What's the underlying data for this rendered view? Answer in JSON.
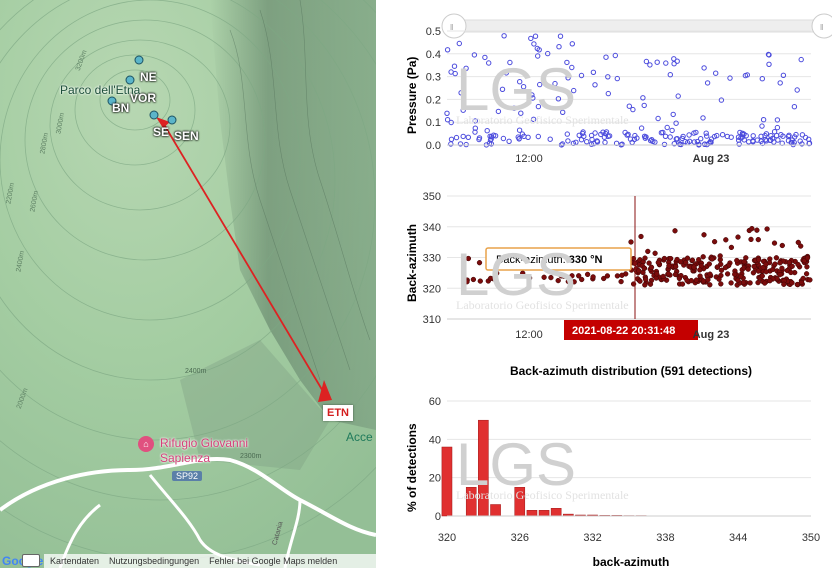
{
  "map": {
    "stations": [
      "NE",
      "VOR",
      "BN",
      "SE",
      "SEN"
    ],
    "park_label": "Parco dell'Etna",
    "target_label": "ETN",
    "road_label": "SP92",
    "poi_label_1": "Rifugio Giovanni",
    "poi_label_2": "Sapienza",
    "edge_label": "Acce",
    "contour_labels": [
      "3200m",
      "3000m",
      "2800m",
      "2600m",
      "2400m",
      "2200m",
      "2000m",
      "2400m",
      "2300m"
    ],
    "road_side_label": "Catania",
    "attribution": [
      "Kartendaten",
      "Nutzungsbedingungen",
      "Fehler bei Google Maps melden"
    ],
    "google_logo": "Google",
    "colors": {
      "terrain": "#9ec9a0",
      "ridge": "#6d8c75",
      "arrow": "#dd2222",
      "poi": "#e0507f"
    }
  },
  "charts": {
    "watermark": "LGS",
    "watermark_sub": "Laboratorio Geofisico Sperimentale",
    "time_ticks": [
      "12:00",
      "Aug 23"
    ],
    "pressure": {
      "ylabel": "Pressure (Pa)",
      "yticks": [
        "0.5",
        "0.4",
        "0.3",
        "0.2",
        "0.1",
        "0.0"
      ]
    },
    "azimuth": {
      "ylabel": "Back-azimuth",
      "yticks": [
        "350",
        "340",
        "330",
        "320",
        "310"
      ],
      "tooltip_label": "Back-azimuth: ",
      "tooltip_value": "330 °N",
      "cursor_time": "2021-08-22 20:31:48"
    },
    "hist_title": "Back-azimuth distribution (591 detections)"
  },
  "chart_data": [
    {
      "type": "scatter",
      "title": "",
      "xlabel": "",
      "ylabel": "Pressure (Pa)",
      "ylim": [
        0,
        0.5
      ],
      "x_ticks": [
        "12:00",
        "Aug 23"
      ],
      "series": [
        {
          "points_summary": "591 detections; most between 0.0 and 0.1 Pa, scattered up to ~0.48 Pa; density increases after Aug 23 00:00"
        }
      ]
    },
    {
      "type": "scatter",
      "title": "",
      "xlabel": "",
      "ylabel": "Back-azimuth",
      "ylim": [
        310,
        350
      ],
      "x_ticks": [
        "12:00",
        "Aug 23"
      ],
      "series": [
        {
          "points_summary": "most detections between 321 and 330 °N, some up to ~343 °N after 20:31"
        }
      ]
    },
    {
      "type": "bar",
      "title": "Back-azimuth distribution (591 detections)",
      "xlabel": "back-azimuth",
      "ylabel": "% of detections",
      "ylim": [
        0,
        60
      ],
      "xlim": [
        320,
        350
      ],
      "x_ticks": [
        "320",
        "326",
        "332",
        "338",
        "344",
        "350"
      ],
      "categories": [
        320,
        321,
        322,
        323,
        324,
        325,
        326,
        327,
        328,
        329,
        330,
        331,
        332,
        333,
        334,
        335,
        336,
        337,
        338,
        339,
        340
      ],
      "values": [
        36,
        0,
        15,
        50,
        6,
        0,
        15,
        3,
        3,
        4,
        1,
        0.5,
        0.5,
        0.3,
        0.3,
        0.2,
        0.2,
        0.1,
        0,
        0,
        0.1
      ]
    }
  ]
}
